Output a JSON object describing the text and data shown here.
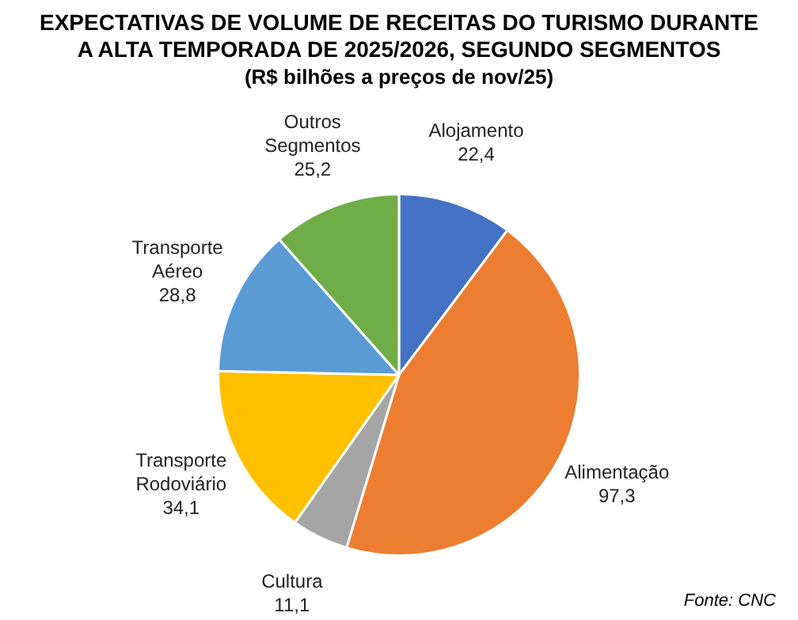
{
  "chart_data": {
    "type": "pie",
    "title": "EXPECTATIVAS DE VOLUME DE RECEITAS DO TURISMO DURANTE A ALTA TEMPORADA DE 2025/2026, SEGUNDO SEGMENTOS",
    "subtitle": "(R$ bilhões a preços de nov/25)",
    "categories": [
      "Alojamento",
      "Alimentação",
      "Cultura",
      "Transporte Rodoviário",
      "Transporte Aéreo",
      "Outros Segmentos"
    ],
    "values": [
      22.4,
      97.3,
      11.1,
      34.1,
      28.8,
      25.2
    ],
    "value_labels": [
      "22,4",
      "97,3",
      "11,1",
      "34,1",
      "28,8",
      "25,2"
    ],
    "colors": [
      "#4472c4",
      "#ed7d31",
      "#a5a5a5",
      "#ffc000",
      "#5b9bd5",
      "#70ad47"
    ],
    "legend": false,
    "annotations": [
      "Fonte: CNC"
    ]
  }
}
